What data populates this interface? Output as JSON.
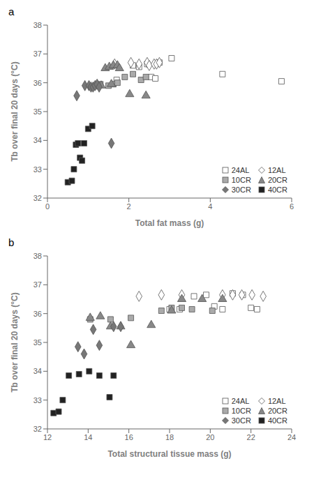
{
  "chart_data": [
    {
      "type": "scatter",
      "title": "a",
      "x_label": "Total fat mass (g)",
      "y_label": "Tb over final 20 days (°C)",
      "xlim": [
        0,
        6
      ],
      "ylim": [
        32,
        38
      ],
      "xticks": [
        0,
        2,
        4,
        6
      ],
      "yticks": [
        32,
        33,
        34,
        35,
        36,
        37,
        38
      ],
      "grid": false,
      "legend": "lower right",
      "series": [
        {
          "name": "24AL",
          "color": "white",
          "marker": "square",
          "x": [
            1.7,
            2.1,
            2.25,
            2.45,
            2.55,
            2.65,
            2.75,
            3.05,
            4.3,
            5.75
          ],
          "values": [
            36.1,
            36.6,
            36.55,
            36.65,
            36.2,
            36.15,
            36.7,
            36.85,
            36.3,
            36.05
          ]
        },
        {
          "name": "12AL",
          "color": "white",
          "marker": "diamond",
          "x": [
            1.65,
            2.05,
            2.25,
            2.45,
            2.5,
            2.62,
            2.68,
            2.75
          ],
          "values": [
            36.65,
            36.7,
            36.65,
            36.7,
            36.6,
            36.65,
            36.65,
            36.7
          ]
        },
        {
          "name": "10CR",
          "color": "#aaaaaa",
          "marker": "square",
          "x": [
            1.3,
            1.5,
            1.62,
            1.72,
            1.9,
            2.1,
            2.3,
            2.42
          ],
          "values": [
            35.95,
            35.9,
            35.95,
            36.0,
            36.2,
            36.3,
            36.1,
            36.2
          ]
        },
        {
          "name": "20CR",
          "color": "#888888",
          "marker": "triangle",
          "x": [
            1.32,
            1.42,
            1.52,
            1.57,
            1.62,
            1.72,
            1.77,
            2.02,
            2.42
          ],
          "values": [
            35.9,
            36.5,
            36.55,
            35.95,
            36.6,
            36.6,
            36.5,
            35.6,
            35.55
          ]
        },
        {
          "name": "30CR",
          "color": "#777777",
          "marker": "diamond",
          "x": [
            0.72,
            0.92,
            1.02,
            1.07,
            1.12,
            1.17,
            1.22,
            1.27,
            1.57
          ],
          "values": [
            35.55,
            35.9,
            35.9,
            35.85,
            35.85,
            35.9,
            35.95,
            35.85,
            33.9
          ]
        },
        {
          "name": "40CR",
          "color": "#222222",
          "marker": "square",
          "x": [
            0.5,
            0.6,
            0.65,
            0.7,
            0.75,
            0.8,
            0.85,
            0.9,
            1.0,
            1.1
          ],
          "values": [
            32.55,
            32.6,
            33.0,
            33.85,
            33.9,
            33.4,
            33.3,
            33.9,
            34.4,
            34.5
          ]
        }
      ]
    },
    {
      "type": "scatter",
      "title": "b",
      "x_label": "Total structural tissue mass (g)",
      "y_label": "Tb over final 20 days (°C)",
      "xlim": [
        12,
        24
      ],
      "ylim": [
        32,
        38
      ],
      "xticks": [
        12,
        14,
        16,
        18,
        20,
        22,
        24
      ],
      "yticks": [
        32,
        33,
        34,
        35,
        36,
        37,
        38
      ],
      "grid": false,
      "legend": "lower right",
      "series": [
        {
          "name": "24AL",
          "color": "white",
          "marker": "square",
          "x": [
            18.0,
            18.5,
            19.2,
            19.8,
            20.2,
            20.6,
            21.1,
            21.6,
            22.0,
            22.3
          ],
          "values": [
            36.15,
            36.15,
            36.6,
            36.65,
            36.25,
            36.15,
            36.7,
            36.65,
            36.2,
            36.15
          ]
        },
        {
          "name": "12AL",
          "color": "white",
          "marker": "diamond",
          "x": [
            16.5,
            17.6,
            18.6,
            20.6,
            21.1,
            21.55,
            22.05,
            22.6
          ],
          "values": [
            36.6,
            36.65,
            36.65,
            36.65,
            36.65,
            36.65,
            36.65,
            36.6
          ]
        },
        {
          "name": "10CR",
          "color": "#aaaaaa",
          "marker": "square",
          "x": [
            14.1,
            15.1,
            16.1,
            17.6,
            18.1,
            18.6,
            19.1,
            20.1
          ],
          "values": [
            35.8,
            35.8,
            35.85,
            36.1,
            36.2,
            36.2,
            36.15,
            36.1
          ]
        },
        {
          "name": "20CR",
          "color": "#888888",
          "marker": "triangle",
          "x": [
            14.1,
            14.6,
            15.1,
            15.6,
            16.1,
            17.1,
            18.1,
            18.6,
            19.6,
            20.6
          ],
          "values": [
            35.85,
            35.9,
            35.55,
            35.55,
            34.9,
            35.6,
            36.1,
            36.5,
            36.5,
            36.5
          ]
        },
        {
          "name": "30CR",
          "color": "#777777",
          "marker": "diamond",
          "x": [
            13.5,
            13.8,
            14.25,
            14.55,
            15.25,
            15.6
          ],
          "values": [
            34.85,
            34.6,
            35.45,
            34.9,
            35.55,
            35.55
          ]
        },
        {
          "name": "40CR",
          "color": "#222222",
          "marker": "square",
          "x": [
            12.3,
            12.55,
            12.75,
            13.05,
            13.55,
            14.05,
            14.55,
            15.05,
            15.25
          ],
          "values": [
            32.55,
            32.6,
            33.0,
            33.85,
            33.9,
            34.0,
            33.85,
            33.1,
            33.85
          ]
        }
      ]
    }
  ]
}
